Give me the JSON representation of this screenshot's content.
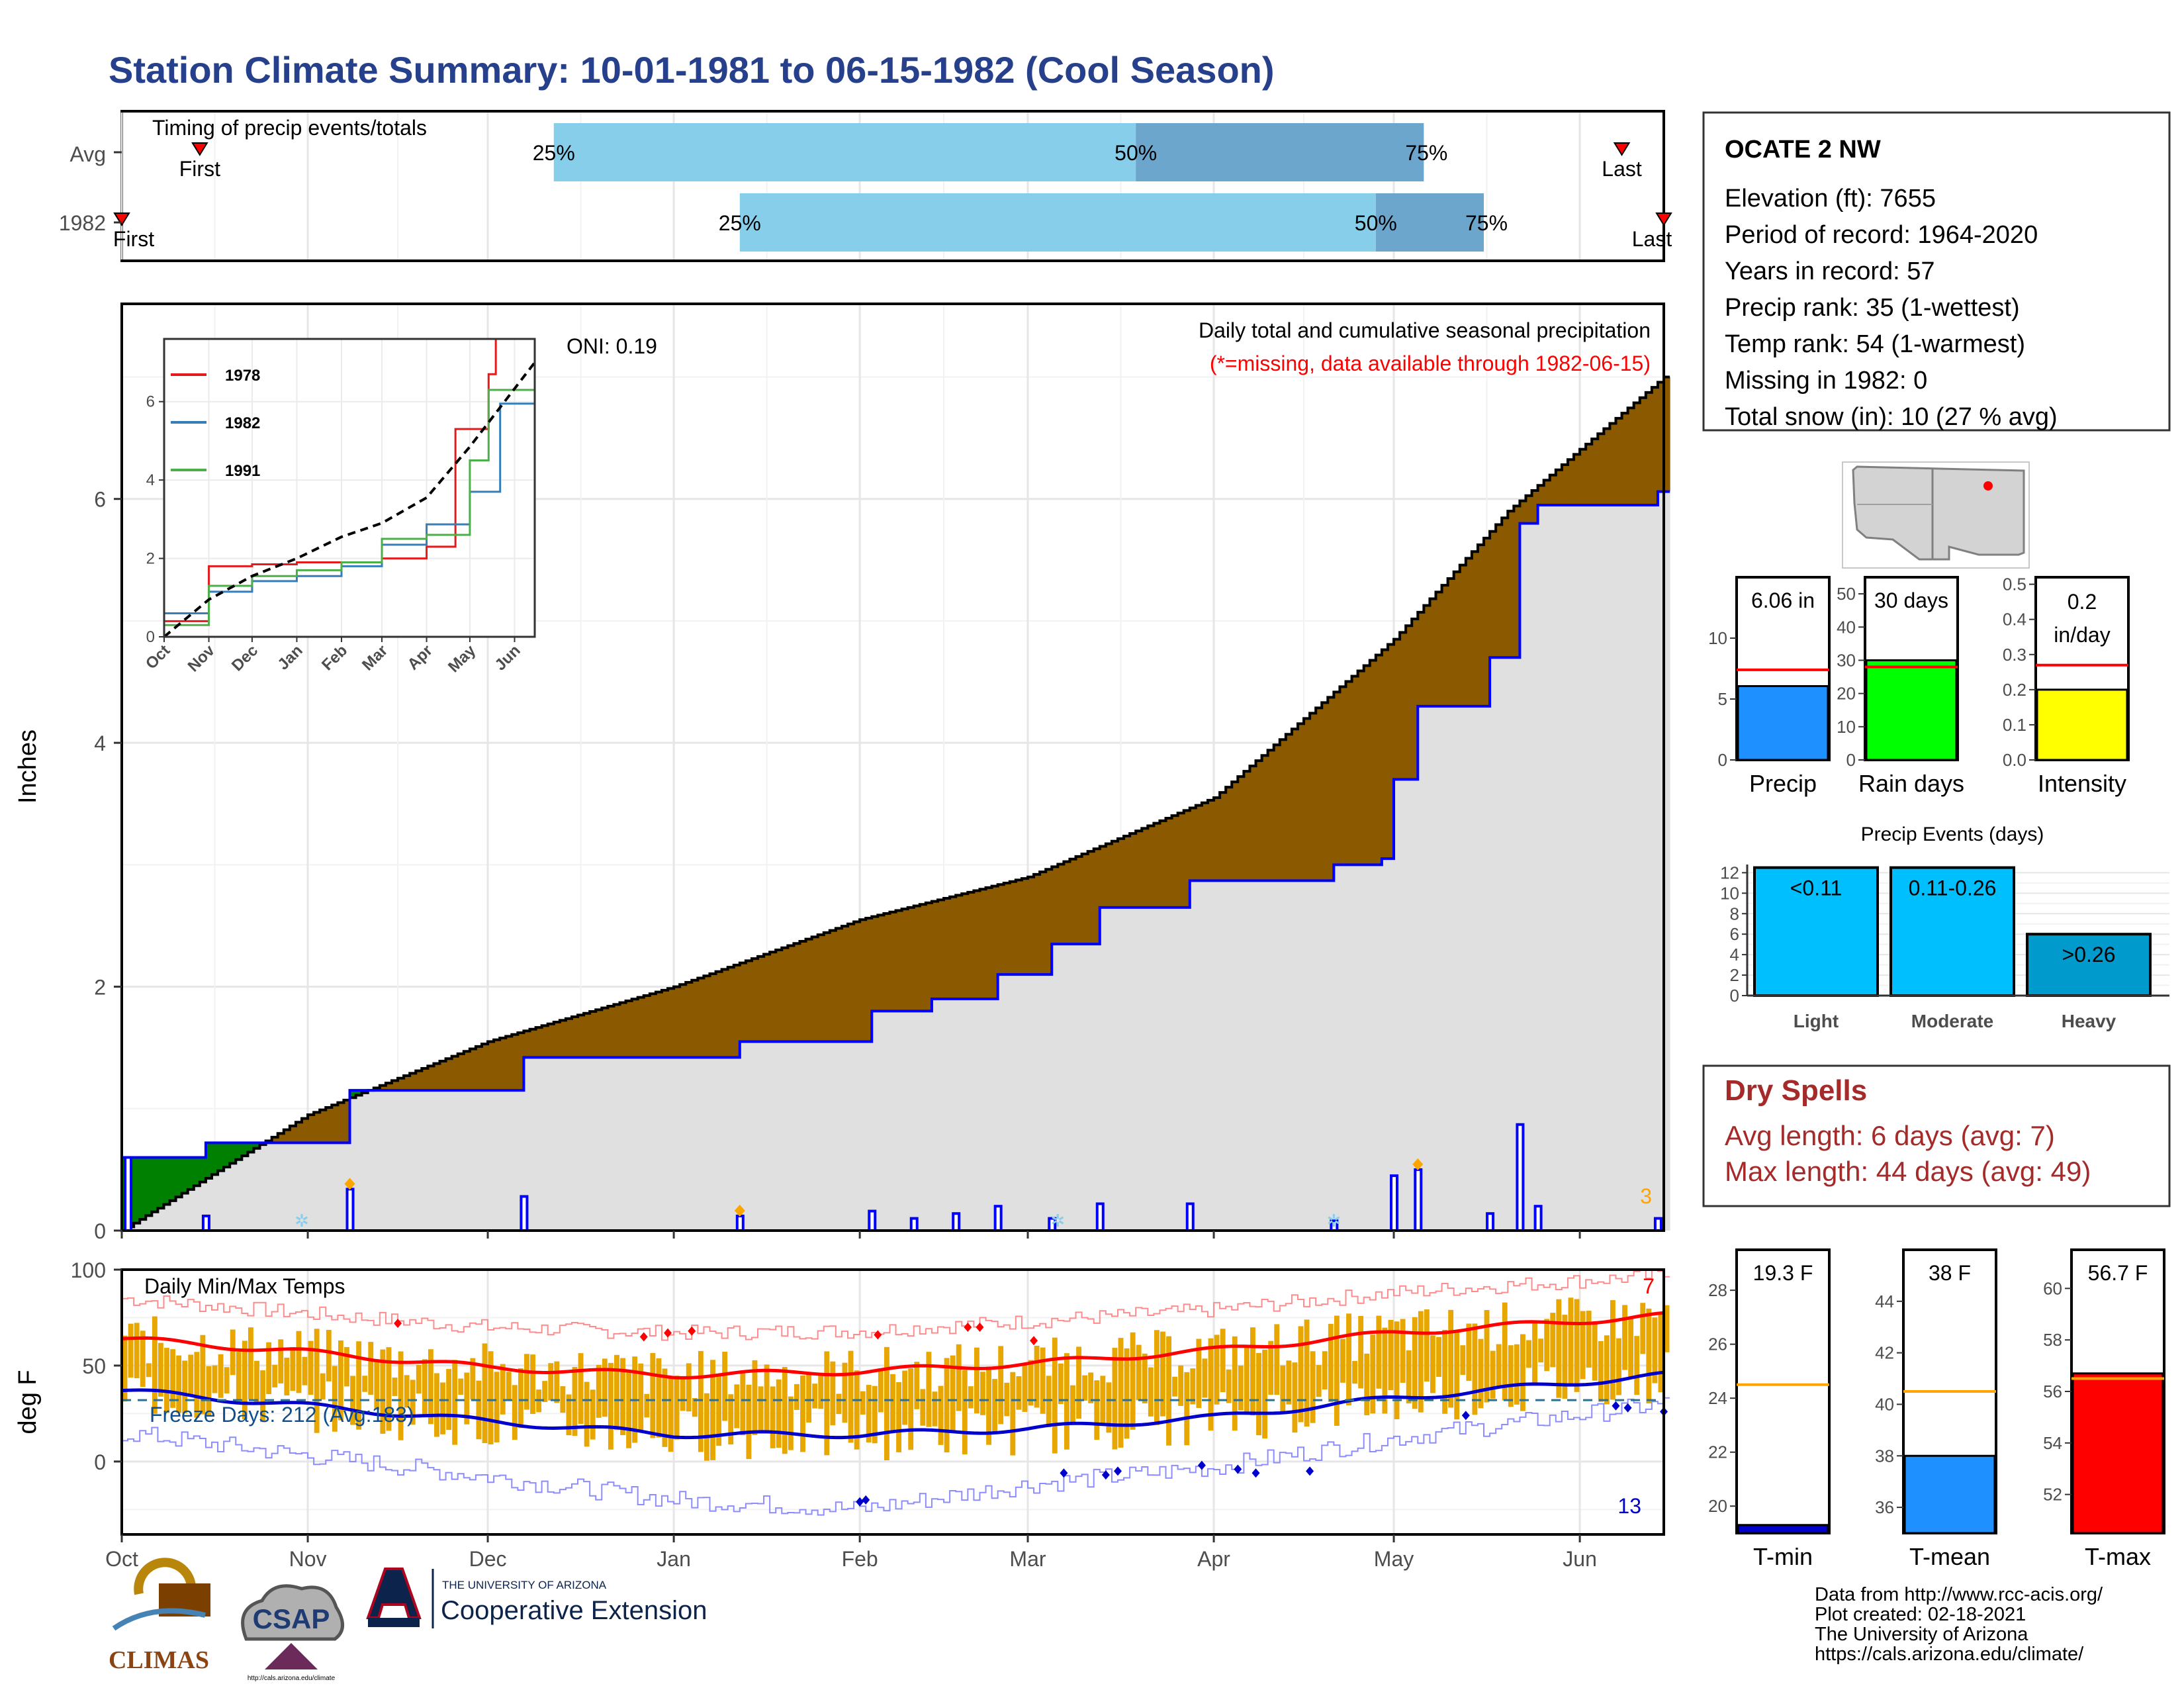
{
  "title": "Station Climate Summary: 10-01-1981 to 06-15-1982 (Cool Season)",
  "colors": {
    "title": "#27408b",
    "cumulative_fill": "#8b5a00",
    "avg_line": "#000000",
    "station_line": "#0000ff",
    "wet_fill": "#008000",
    "grey_fill": "#e0e0e0",
    "bar_light": "#87ceeb",
    "bar_dark": "#6ca6cd",
    "temp_bar": "#e8a600",
    "tmax_line": "#ff0000",
    "tmin_line": "#0000cd",
    "dry_spell": "#a52a2a"
  },
  "timing_panel": {
    "label": "Timing of precip events/totals",
    "rows": [
      {
        "name": "Avg",
        "first_label": "First",
        "last_label": "Last",
        "p25_label": "25%",
        "p50_label": "50%",
        "p75_label": "75%"
      },
      {
        "name": "1982",
        "first_label": "First",
        "last_label": "Last",
        "p25_label": "25%",
        "p50_label": "50%",
        "p75_label": "75%"
      }
    ]
  },
  "precip_panel": {
    "ylabel": "Inches",
    "oni": "ONI: 0.19",
    "subtitle": "Daily total and cumulative seasonal precipitation",
    "missing_note": "(*=missing, data available through 1982-06-15)",
    "corner_count": "3",
    "y_ticks": [
      "0",
      "2",
      "4",
      "6"
    ],
    "months": [
      "Oct",
      "Nov",
      "Dec",
      "Jan",
      "Feb",
      "Mar",
      "Apr",
      "May",
      "Jun"
    ]
  },
  "inset": {
    "legend": [
      "1978",
      "1982",
      "1991"
    ],
    "legend_colors": [
      "#e41a1c",
      "#377eb8",
      "#4daf4a"
    ],
    "y_ticks": [
      "0",
      "2",
      "4",
      "6"
    ],
    "months": [
      "Oct",
      "Nov",
      "Dec",
      "Jan",
      "Feb",
      "Mar",
      "Apr",
      "May",
      "Jun"
    ]
  },
  "temp_panel": {
    "ylabel": "deg F",
    "label": "Daily Min/Max Temps",
    "freeze_label": "Freeze Days: 212 (Avg:183)",
    "count_top": "7",
    "count_bottom": "13",
    "y_ticks": [
      "0",
      "50",
      "100"
    ],
    "months": [
      "Oct",
      "Nov",
      "Dec",
      "Jan",
      "Feb",
      "Mar",
      "Apr",
      "May",
      "Jun"
    ]
  },
  "station": {
    "name": "OCATE 2 NW",
    "lines": [
      "Elevation (ft): 7655",
      "Period of record: 1964-2020",
      "Years in record: 57",
      "Precip rank: 35 (1-wettest)",
      "Temp rank: 54 (1-warmest)",
      "Missing in 1982: 0",
      "Total snow (in): 10 (27 % avg)"
    ]
  },
  "mini_bars": [
    {
      "label": "Precip",
      "value_label": "6.06 in",
      "value": 6.06,
      "avg": 7.4,
      "ymax": 15,
      "ticks": [
        "0",
        "5",
        "10"
      ],
      "tick_values": [
        0,
        5,
        10
      ],
      "color": "#1e90ff"
    },
    {
      "label": "Rain days",
      "value_label": "30 days",
      "value": 30,
      "avg": 28,
      "ymax": 55,
      "ticks": [
        "0",
        "10",
        "20",
        "30",
        "40",
        "50"
      ],
      "tick_values": [
        0,
        10,
        20,
        30,
        40,
        50
      ],
      "color": "#00ff00"
    },
    {
      "label": "Intensity",
      "value_label": "0.2 in/day",
      "value_label_1": "0.2",
      "value_label_2": "in/day",
      "value": 0.2,
      "avg": 0.27,
      "ymax": 0.52,
      "ticks": [
        "0.0",
        "0.1",
        "0.2",
        "0.3",
        "0.4",
        "0.5"
      ],
      "tick_values": [
        0,
        0.1,
        0.2,
        0.3,
        0.4,
        0.5
      ],
      "color": "#ffff00"
    }
  ],
  "events": {
    "title": "Precip Events (days)",
    "y_ticks": [
      "0",
      "2",
      "4",
      "6",
      "8",
      "10",
      "12"
    ],
    "bars": [
      {
        "category": "Light",
        "label": "<0.11",
        "value": 12.5,
        "color": "#00bfff"
      },
      {
        "category": "Moderate",
        "label": "0.11-0.26",
        "value": 12.5,
        "color": "#00bfff"
      },
      {
        "category": "Heavy",
        "label": ">0.26",
        "value": 6,
        "color": "#009acd"
      }
    ]
  },
  "dry_spells": {
    "title": "Dry Spells",
    "avg_length": "Avg length: 6 days (avg: 7)",
    "max_length": "Max length: 44 days (avg: 49)"
  },
  "temp_bars": [
    {
      "label": "T-min",
      "value_label": "19.3 F",
      "value": 19.3,
      "avg": 24.5,
      "ymin": 19,
      "ymax": 29.5,
      "ticks": [
        "20",
        "22",
        "24",
        "26",
        "28"
      ],
      "tick_values": [
        20,
        22,
        24,
        26,
        28
      ],
      "color": "#0000cd"
    },
    {
      "label": "T-mean",
      "value_label": "38 F",
      "value": 38,
      "avg": 40.5,
      "ymin": 35,
      "ymax": 46,
      "ticks": [
        "36",
        "38",
        "40",
        "42",
        "44"
      ],
      "tick_values": [
        36,
        38,
        40,
        42,
        44
      ],
      "color": "#1e90ff"
    },
    {
      "label": "T-max",
      "value_label": "56.7 F",
      "value": 56.7,
      "avg": 56.5,
      "ymin": 50.5,
      "ymax": 61.5,
      "ticks": [
        "52",
        "54",
        "56",
        "58",
        "60"
      ],
      "tick_values": [
        52,
        54,
        56,
        58,
        60
      ],
      "color": "#ff0000"
    }
  ],
  "footer": {
    "lines": [
      "Data from http://www.rcc-acis.org/",
      "Plot created: 02-18-2021",
      "The University of Arizona",
      "https://cals.arizona.edu/climate/"
    ],
    "climas": "CLIMAS",
    "csap": "CSAP",
    "csap_url": "http://cals.arizona.edu/climate",
    "ua_line1": "THE UNIVERSITY OF ARIZONA",
    "ua_line2": "Cooperative Extension"
  },
  "chart_data": [
    {
      "type": "bar",
      "name": "timing",
      "categories": [
        "Avg",
        "1982"
      ],
      "series": [
        {
          "name": "Avg",
          "first": "1981-10-14",
          "p25": "1981-12-12",
          "p50": "1982-03-19",
          "p75": "1982-05-06",
          "last": "1982-06-08"
        },
        {
          "name": "1982",
          "first": "1981-10-01",
          "p25": "1982-01-12",
          "p50": "1982-04-28",
          "p75": "1982-05-16",
          "last": "1982-06-15"
        }
      ]
    },
    {
      "type": "area",
      "name": "precip",
      "xlabel": "",
      "ylabel": "Inches",
      "ylim": [
        0,
        7.6
      ],
      "avg_cumulative": [
        {
          "date": "1981-10-01",
          "y": 0.0
        },
        {
          "date": "1981-11-01",
          "y": 0.95
        },
        {
          "date": "1981-12-01",
          "y": 1.55
        },
        {
          "date": "1982-01-01",
          "y": 2.0
        },
        {
          "date": "1982-02-01",
          "y": 2.55
        },
        {
          "date": "1982-03-01",
          "y": 2.9
        },
        {
          "date": "1982-04-01",
          "y": 3.55
        },
        {
          "date": "1982-05-01",
          "y": 4.85
        },
        {
          "date": "1982-05-20",
          "y": 5.9
        },
        {
          "date": "1982-06-15",
          "y": 7.0
        }
      ],
      "station_cumulative": [
        {
          "date": "1981-10-01",
          "y": 0.6
        },
        {
          "date": "1981-10-15",
          "y": 0.72
        },
        {
          "date": "1981-11-08",
          "y": 1.15
        },
        {
          "date": "1981-12-07",
          "y": 1.42
        },
        {
          "date": "1982-01-12",
          "y": 1.55
        },
        {
          "date": "1982-02-03",
          "y": 1.8
        },
        {
          "date": "1982-02-13",
          "y": 1.9
        },
        {
          "date": "1982-02-24",
          "y": 2.1
        },
        {
          "date": "1982-03-05",
          "y": 2.35
        },
        {
          "date": "1982-03-13",
          "y": 2.65
        },
        {
          "date": "1982-03-28",
          "y": 2.87
        },
        {
          "date": "1982-04-21",
          "y": 3.0
        },
        {
          "date": "1982-04-29",
          "y": 3.05
        },
        {
          "date": "1982-05-01",
          "y": 3.7
        },
        {
          "date": "1982-05-05",
          "y": 4.3
        },
        {
          "date": "1982-05-17",
          "y": 4.7
        },
        {
          "date": "1982-05-22",
          "y": 5.8
        },
        {
          "date": "1982-05-25",
          "y": 5.95
        },
        {
          "date": "1982-06-14",
          "y": 6.06
        }
      ],
      "daily_events": [
        {
          "date": "1981-10-02",
          "y": 0.6
        },
        {
          "date": "1981-10-15",
          "y": 0.12
        },
        {
          "date": "1981-11-08",
          "y": 0.34
        },
        {
          "date": "1981-12-07",
          "y": 0.28
        },
        {
          "date": "1982-01-12",
          "y": 0.12
        },
        {
          "date": "1982-02-03",
          "y": 0.16
        },
        {
          "date": "1982-02-10",
          "y": 0.1
        },
        {
          "date": "1982-02-17",
          "y": 0.14
        },
        {
          "date": "1982-02-24",
          "y": 0.2
        },
        {
          "date": "1982-03-05",
          "y": 0.1
        },
        {
          "date": "1982-03-13",
          "y": 0.22
        },
        {
          "date": "1982-03-28",
          "y": 0.22
        },
        {
          "date": "1982-04-21",
          "y": 0.08
        },
        {
          "date": "1982-05-01",
          "y": 0.45
        },
        {
          "date": "1982-05-05",
          "y": 0.5
        },
        {
          "date": "1982-05-17",
          "y": 0.14
        },
        {
          "date": "1982-05-22",
          "y": 0.87
        },
        {
          "date": "1982-05-25",
          "y": 0.2
        },
        {
          "date": "1982-06-14",
          "y": 0.1
        }
      ]
    },
    {
      "type": "line",
      "name": "inset",
      "ylim": [
        0,
        7.6
      ],
      "series": [
        {
          "name": "1978",
          "values": [
            [
              0,
              0.4
            ],
            [
              31,
              1.8
            ],
            [
              61,
              1.85
            ],
            [
              92,
              1.9
            ],
            [
              123,
              1.9
            ],
            [
              151,
              2.0
            ],
            [
              182,
              2.3
            ],
            [
              202,
              5.3
            ],
            [
              225,
              6.7
            ],
            [
              230,
              7.6
            ]
          ]
        },
        {
          "name": "1982",
          "values": [
            [
              0,
              0.6
            ],
            [
              31,
              1.15
            ],
            [
              61,
              1.42
            ],
            [
              92,
              1.55
            ],
            [
              123,
              1.8
            ],
            [
              151,
              2.35
            ],
            [
              182,
              2.87
            ],
            [
              212,
              3.7
            ],
            [
              233,
              5.95
            ],
            [
              257,
              6.06
            ]
          ]
        },
        {
          "name": "1991",
          "values": [
            [
              0,
              0.3
            ],
            [
              31,
              1.3
            ],
            [
              61,
              1.55
            ],
            [
              92,
              1.7
            ],
            [
              123,
              1.9
            ],
            [
              151,
              2.5
            ],
            [
              182,
              2.6
            ],
            [
              212,
              4.5
            ],
            [
              225,
              6.3
            ],
            [
              257,
              6.7
            ]
          ]
        },
        {
          "name": "avg",
          "values": [
            [
              0,
              0
            ],
            [
              31,
              0.95
            ],
            [
              61,
              1.55
            ],
            [
              92,
              2.0
            ],
            [
              123,
              2.55
            ],
            [
              151,
              2.9
            ],
            [
              182,
              3.55
            ],
            [
              212,
              4.85
            ],
            [
              257,
              7.0
            ]
          ]
        }
      ]
    },
    {
      "type": "line",
      "name": "temps",
      "ylabel": "deg F",
      "ylim": [
        -38,
        100
      ],
      "avg_tmax": [
        [
          0,
          64
        ],
        [
          31,
          57
        ],
        [
          61,
          49
        ],
        [
          92,
          45
        ],
        [
          123,
          47
        ],
        [
          151,
          51
        ],
        [
          182,
          58
        ],
        [
          212,
          67
        ],
        [
          257,
          76
        ]
      ],
      "avg_tmin": [
        [
          0,
          37
        ],
        [
          31,
          29
        ],
        [
          61,
          21
        ],
        [
          92,
          14
        ],
        [
          123,
          14
        ],
        [
          151,
          17
        ],
        [
          182,
          23
        ],
        [
          212,
          33
        ],
        [
          257,
          45
        ]
      ],
      "record_high": [
        [
          0,
          85
        ],
        [
          31,
          77
        ],
        [
          61,
          70
        ],
        [
          92,
          67
        ],
        [
          123,
          68
        ],
        [
          151,
          73
        ],
        [
          182,
          79
        ],
        [
          212,
          88
        ],
        [
          257,
          97
        ]
      ],
      "record_low": [
        [
          0,
          15
        ],
        [
          31,
          3
        ],
        [
          61,
          -8
        ],
        [
          92,
          -20
        ],
        [
          123,
          -25
        ],
        [
          151,
          -12
        ],
        [
          182,
          -3
        ],
        [
          212,
          12
        ],
        [
          257,
          30
        ]
      ],
      "freeze_threshold": 32
    },
    {
      "type": "bar",
      "name": "precip_stats",
      "categories": [
        "Precip",
        "Rain days",
        "Intensity"
      ],
      "values": [
        6.06,
        30,
        0.2
      ],
      "averages": [
        7.4,
        28,
        0.27
      ]
    },
    {
      "type": "bar",
      "name": "precip_events",
      "categories": [
        "Light",
        "Moderate",
        "Heavy"
      ],
      "values": [
        12.5,
        12.5,
        6
      ],
      "ylim": [
        0,
        12.5
      ]
    },
    {
      "type": "bar",
      "name": "temp_stats",
      "categories": [
        "T-min",
        "T-mean",
        "T-max"
      ],
      "values": [
        19.3,
        38,
        56.7
      ],
      "averages": [
        24.5,
        40.5,
        56.5
      ]
    }
  ]
}
